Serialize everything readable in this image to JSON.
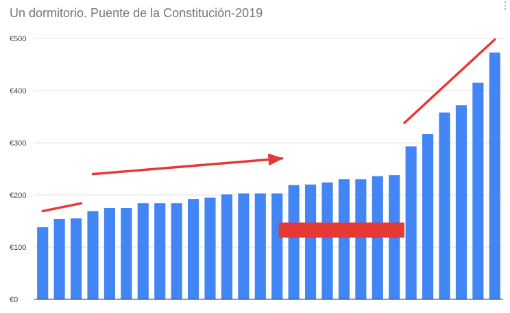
{
  "chart_data": {
    "type": "bar",
    "title": "Un dormitorio. Puente de la Constitución-2019",
    "xlabel": "",
    "ylabel": "",
    "ylim": [
      0,
      500
    ],
    "yticks": [
      0,
      100,
      200,
      300,
      400,
      500
    ],
    "ytick_labels": [
      "€0",
      "€100",
      "€200",
      "€300",
      "€400",
      "€500"
    ],
    "grid": true,
    "legend": "none",
    "values": [
      138,
      154,
      155,
      169,
      175,
      175,
      184,
      184,
      184,
      192,
      195,
      201,
      203,
      203,
      203,
      219,
      220,
      224,
      230,
      230,
      236,
      238,
      293,
      317,
      358,
      372,
      415,
      473
    ],
    "annotations": [
      {
        "type": "line",
        "color": "#e53935",
        "from": [
          0.0,
          169
        ],
        "to": [
          2.3,
          184
        ]
      },
      {
        "type": "arrow",
        "color": "#e53935",
        "from": [
          3.0,
          240
        ],
        "to": [
          14.3,
          270
        ]
      },
      {
        "type": "rect",
        "color": "#e53935",
        "x": [
          14.1,
          21.6
        ],
        "y": [
          118,
          147
        ]
      },
      {
        "type": "line",
        "color": "#e53935",
        "from": [
          21.6,
          338
        ],
        "to": [
          27.0,
          498
        ]
      }
    ]
  },
  "colors": {
    "bar": "#4285f4",
    "grid": "#e0e0e0",
    "annotation": "#e53935"
  },
  "menu_icon": "vertical-dots-icon"
}
